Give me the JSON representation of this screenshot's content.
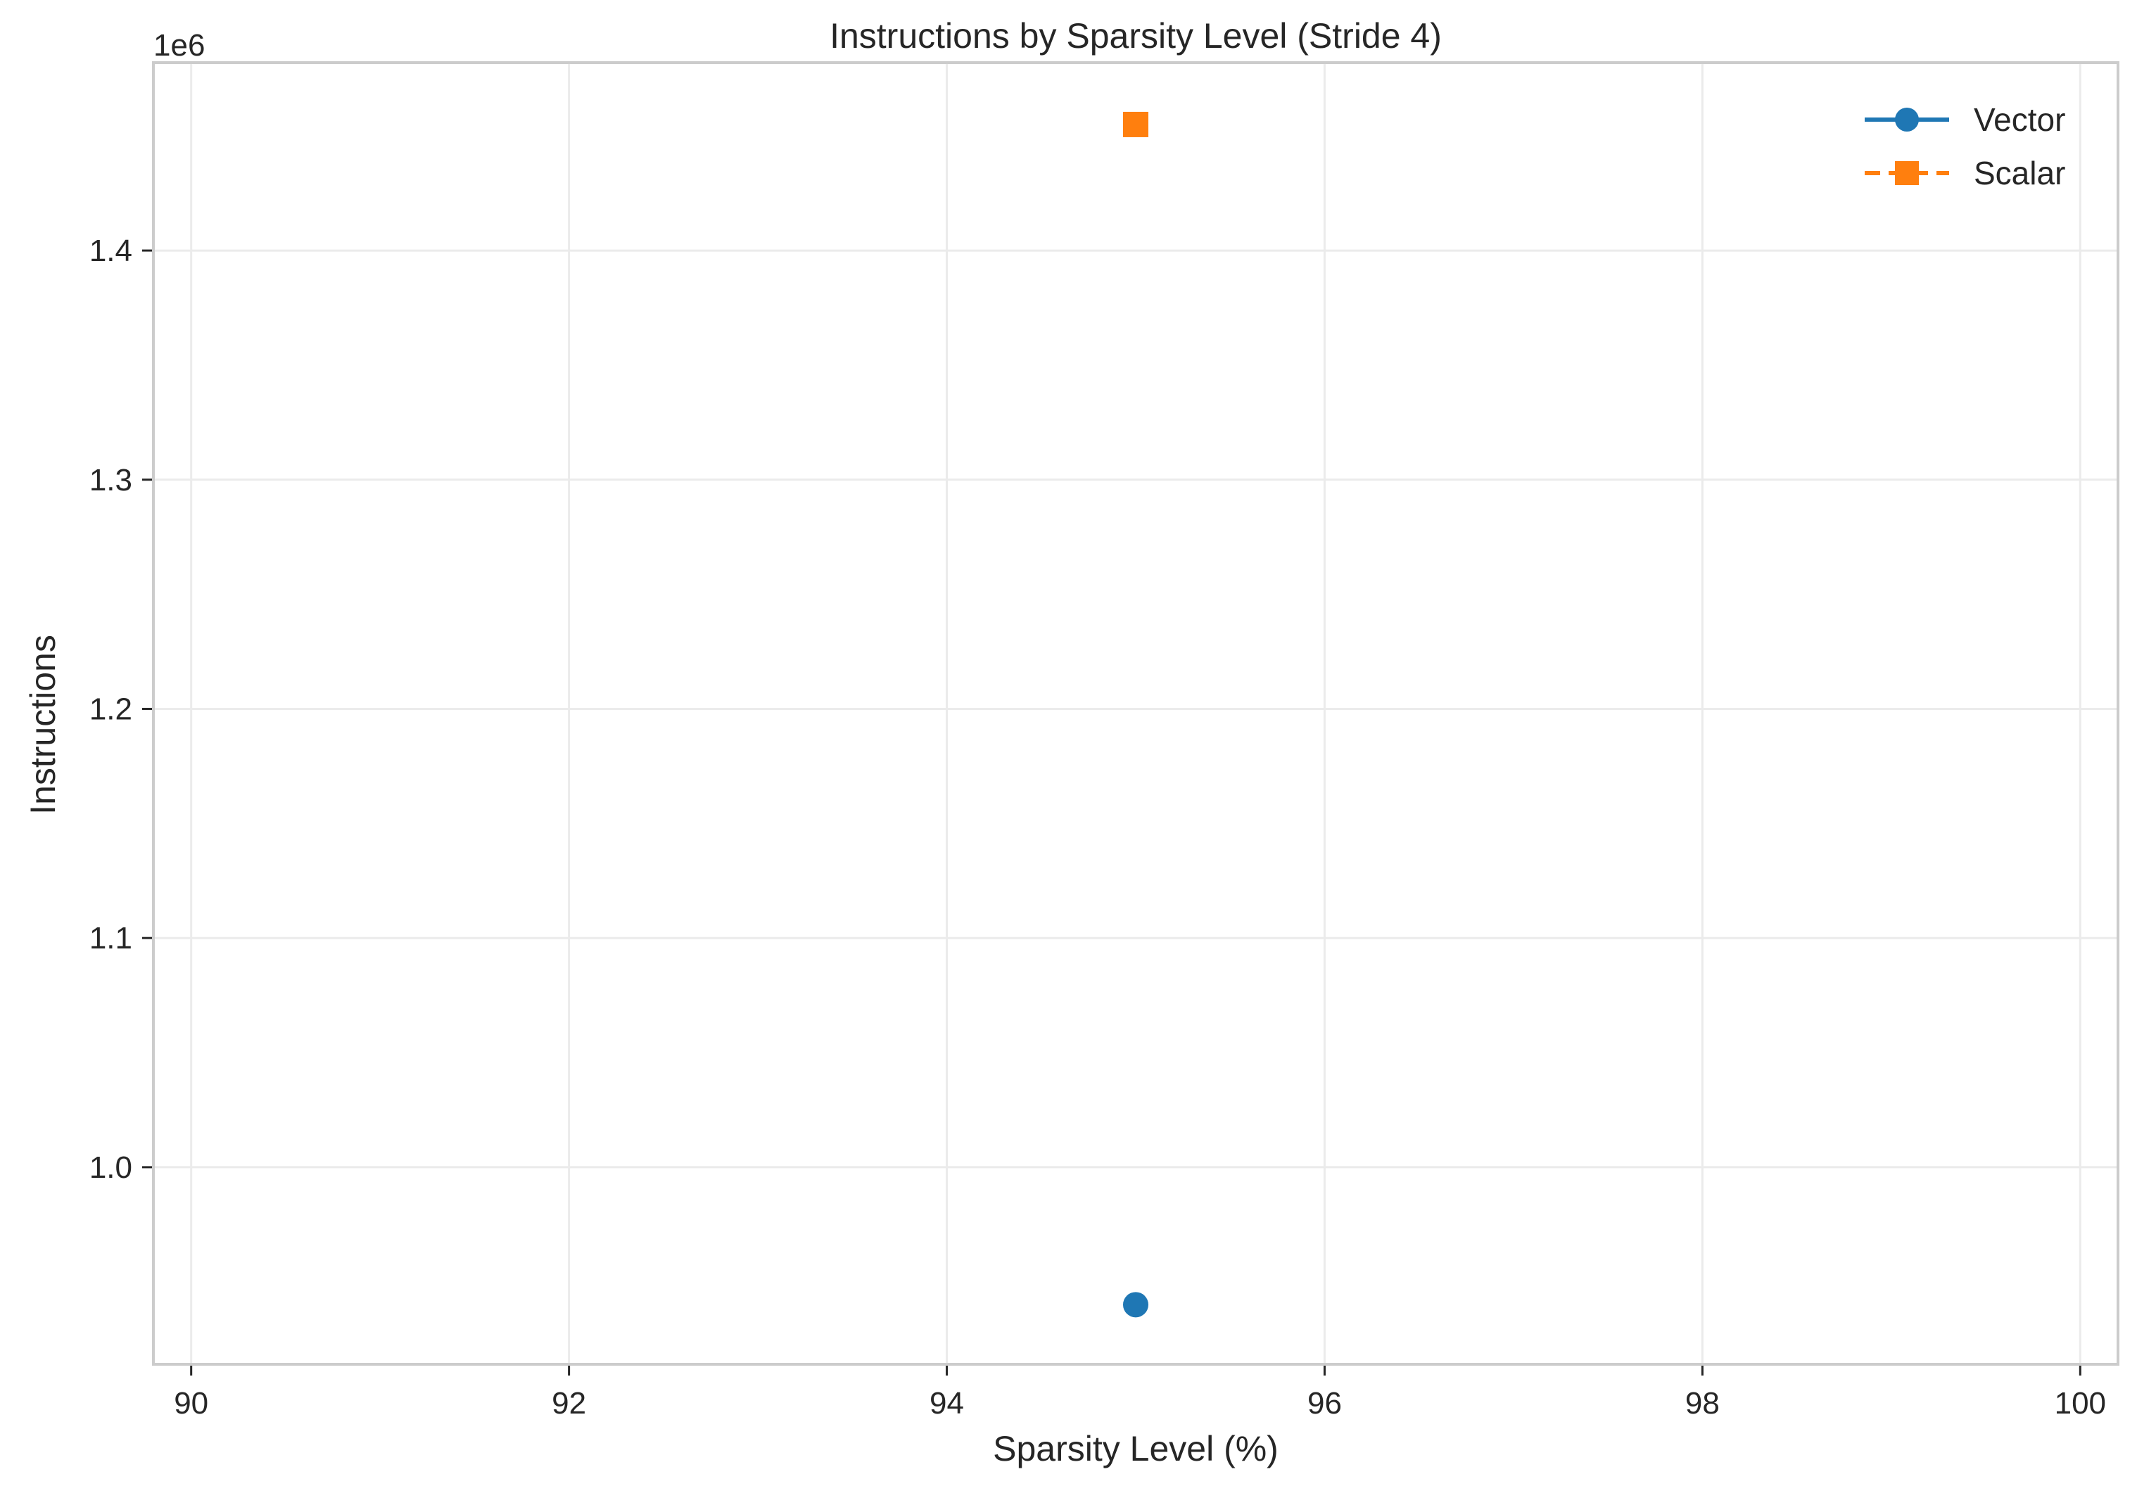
{
  "chart_data": {
    "type": "scatter",
    "title": "Instructions by Sparsity Level (Stride 4)",
    "xlabel": "Sparsity Level (%)",
    "ylabel": "Instructions",
    "y_offset_label": "1e6",
    "xlim": [
      89.8,
      100.2
    ],
    "ylim": [
      0.914,
      1.482
    ],
    "x_ticks": [
      90,
      92,
      94,
      96,
      98,
      100
    ],
    "x_tick_labels": [
      "90",
      "92",
      "94",
      "96",
      "98",
      "100"
    ],
    "y_ticks": [
      1.0,
      1.1,
      1.2,
      1.3,
      1.4
    ],
    "y_tick_labels": [
      "1.0",
      "1.1",
      "1.2",
      "1.3",
      "1.4"
    ],
    "grid": true,
    "legend_position": "top-right",
    "series": [
      {
        "name": "Vector",
        "marker": "circle",
        "line": "solid",
        "color": "#1f77b4",
        "x": [
          95
        ],
        "y": [
          0.94
        ]
      },
      {
        "name": "Scalar",
        "marker": "square",
        "line": "dashed",
        "color": "#ff7f0e",
        "x": [
          95
        ],
        "y": [
          1.455
        ]
      }
    ]
  }
}
